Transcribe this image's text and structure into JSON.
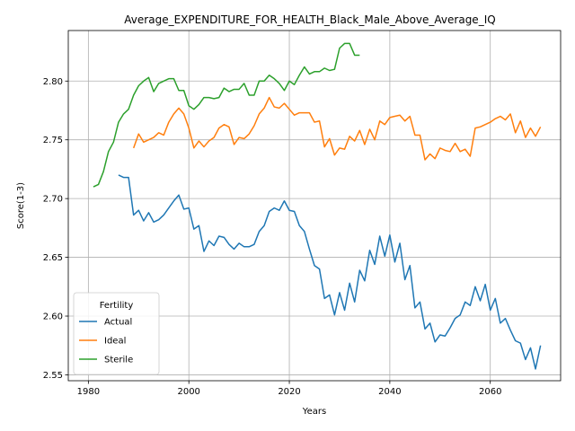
{
  "chart_data": {
    "type": "line",
    "title": "Average_EXPENDITURE_FOR_HEALTH_Black_Male_Above_Average_IQ",
    "xlabel": "Years",
    "ylabel": "Score(1-3)",
    "xlim": [
      1976,
      2074
    ],
    "ylim": [
      2.545,
      2.843
    ],
    "xticks": [
      1980,
      2000,
      2020,
      2040,
      2060
    ],
    "yticks": [
      2.55,
      2.6,
      2.65,
      2.7,
      2.75,
      2.8
    ],
    "ytick_labels": [
      "2.55",
      "2.60",
      "2.65",
      "2.70",
      "2.75",
      "2.80"
    ],
    "grid": true,
    "legend": {
      "title": "Fertility",
      "placement": "lower-left"
    },
    "series": [
      {
        "name": "Actual",
        "color": "#1f77b4",
        "x": [
          1986,
          1987,
          1988,
          1989,
          1990,
          1991,
          1992,
          1993,
          1994,
          1995,
          1996,
          1997,
          1998,
          1999,
          2000,
          2001,
          2002,
          2003,
          2004,
          2005,
          2006,
          2007,
          2008,
          2009,
          2010,
          2011,
          2012,
          2013,
          2014,
          2015,
          2016,
          2017,
          2018,
          2019,
          2020,
          2021,
          2022,
          2023,
          2024,
          2025,
          2026,
          2027,
          2028,
          2029,
          2030,
          2031,
          2032,
          2033,
          2034,
          2035,
          2036,
          2037,
          2038,
          2039,
          2040,
          2041,
          2042,
          2043,
          2044,
          2045,
          2046,
          2047,
          2048,
          2049,
          2050,
          2051,
          2052,
          2053,
          2054,
          2055,
          2056,
          2057,
          2058,
          2059,
          2060,
          2061,
          2062,
          2063,
          2064,
          2065,
          2066,
          2067,
          2068,
          2069,
          2070
        ],
        "values": [
          2.72,
          2.718,
          2.718,
          2.686,
          2.69,
          2.681,
          2.688,
          2.68,
          2.682,
          2.686,
          2.692,
          2.698,
          2.703,
          2.691,
          2.692,
          2.674,
          2.677,
          2.655,
          2.664,
          2.66,
          2.668,
          2.667,
          2.661,
          2.657,
          2.662,
          2.659,
          2.659,
          2.661,
          2.672,
          2.677,
          2.689,
          2.692,
          2.69,
          2.698,
          2.69,
          2.689,
          2.677,
          2.672,
          2.657,
          2.643,
          2.64,
          2.615,
          2.618,
          2.601,
          2.62,
          2.605,
          2.628,
          2.612,
          2.639,
          2.63,
          2.656,
          2.644,
          2.668,
          2.651,
          2.669,
          2.646,
          2.662,
          2.631,
          2.643,
          2.607,
          2.612,
          2.589,
          2.594,
          2.578,
          2.584,
          2.583,
          2.59,
          2.598,
          2.601,
          2.612,
          2.609,
          2.625,
          2.613,
          2.627,
          2.605,
          2.615,
          2.594,
          2.598,
          2.588,
          2.579,
          2.577,
          2.563,
          2.573,
          2.555,
          2.575
        ]
      },
      {
        "name": "Ideal",
        "color": "#ff7f0e",
        "x": [
          1989,
          1990,
          1991,
          1992,
          1993,
          1994,
          1995,
          1996,
          1997,
          1998,
          1999,
          2000,
          2001,
          2002,
          2003,
          2004,
          2005,
          2006,
          2007,
          2008,
          2009,
          2010,
          2011,
          2012,
          2013,
          2014,
          2015,
          2016,
          2017,
          2018,
          2019,
          2020,
          2021,
          2022,
          2023,
          2024,
          2025,
          2026,
          2027,
          2028,
          2029,
          2030,
          2031,
          2032,
          2033,
          2034,
          2035,
          2036,
          2037,
          2038,
          2039,
          2040,
          2041,
          2042,
          2043,
          2044,
          2045,
          2046,
          2047,
          2048,
          2049,
          2050,
          2051,
          2052,
          2053,
          2054,
          2055,
          2056,
          2057,
          2058,
          2059,
          2060,
          2061,
          2062,
          2063,
          2064,
          2065,
          2066,
          2067,
          2068,
          2069,
          2070
        ],
        "values": [
          2.743,
          2.755,
          2.748,
          2.75,
          2.752,
          2.756,
          2.754,
          2.765,
          2.772,
          2.777,
          2.772,
          2.76,
          2.743,
          2.749,
          2.744,
          2.749,
          2.752,
          2.76,
          2.763,
          2.761,
          2.746,
          2.752,
          2.751,
          2.755,
          2.762,
          2.772,
          2.777,
          2.786,
          2.778,
          2.777,
          2.781,
          2.776,
          2.771,
          2.773,
          2.773,
          2.773,
          2.765,
          2.766,
          2.744,
          2.751,
          2.737,
          2.743,
          2.742,
          2.753,
          2.749,
          2.758,
          2.746,
          2.759,
          2.75,
          2.766,
          2.763,
          2.769,
          2.77,
          2.771,
          2.766,
          2.77,
          2.754,
          2.754,
          2.733,
          2.738,
          2.734,
          2.743,
          2.741,
          2.74,
          2.747,
          2.74,
          2.742,
          2.736,
          2.76,
          2.761,
          2.763,
          2.765,
          2.768,
          2.77,
          2.767,
          2.772,
          2.756,
          2.766,
          2.752,
          2.76,
          2.753,
          2.761
        ]
      },
      {
        "name": "Sterile",
        "color": "#2ca02c",
        "x": [
          1981,
          1982,
          1983,
          1984,
          1985,
          1986,
          1987,
          1988,
          1989,
          1990,
          1991,
          1992,
          1993,
          1994,
          1995,
          1996,
          1997,
          1998,
          1999,
          2000,
          2001,
          2002,
          2003,
          2004,
          2005,
          2006,
          2007,
          2008,
          2009,
          2010,
          2011,
          2012,
          2013,
          2014,
          2015,
          2016,
          2017,
          2018,
          2019,
          2020,
          2021,
          2022,
          2023,
          2024,
          2025,
          2026,
          2027,
          2028,
          2029,
          2030,
          2031,
          2032,
          2033,
          2034
        ],
        "values": [
          2.71,
          2.712,
          2.723,
          2.74,
          2.748,
          2.765,
          2.772,
          2.776,
          2.788,
          2.796,
          2.8,
          2.803,
          2.791,
          2.798,
          2.8,
          2.802,
          2.802,
          2.792,
          2.792,
          2.779,
          2.776,
          2.78,
          2.786,
          2.786,
          2.785,
          2.786,
          2.794,
          2.791,
          2.793,
          2.793,
          2.798,
          2.788,
          2.788,
          2.8,
          2.8,
          2.805,
          2.802,
          2.798,
          2.792,
          2.8,
          2.797,
          2.805,
          2.812,
          2.806,
          2.808,
          2.808,
          2.811,
          2.809,
          2.81,
          2.828,
          2.832,
          2.832,
          2.822,
          2.822
        ]
      }
    ]
  }
}
